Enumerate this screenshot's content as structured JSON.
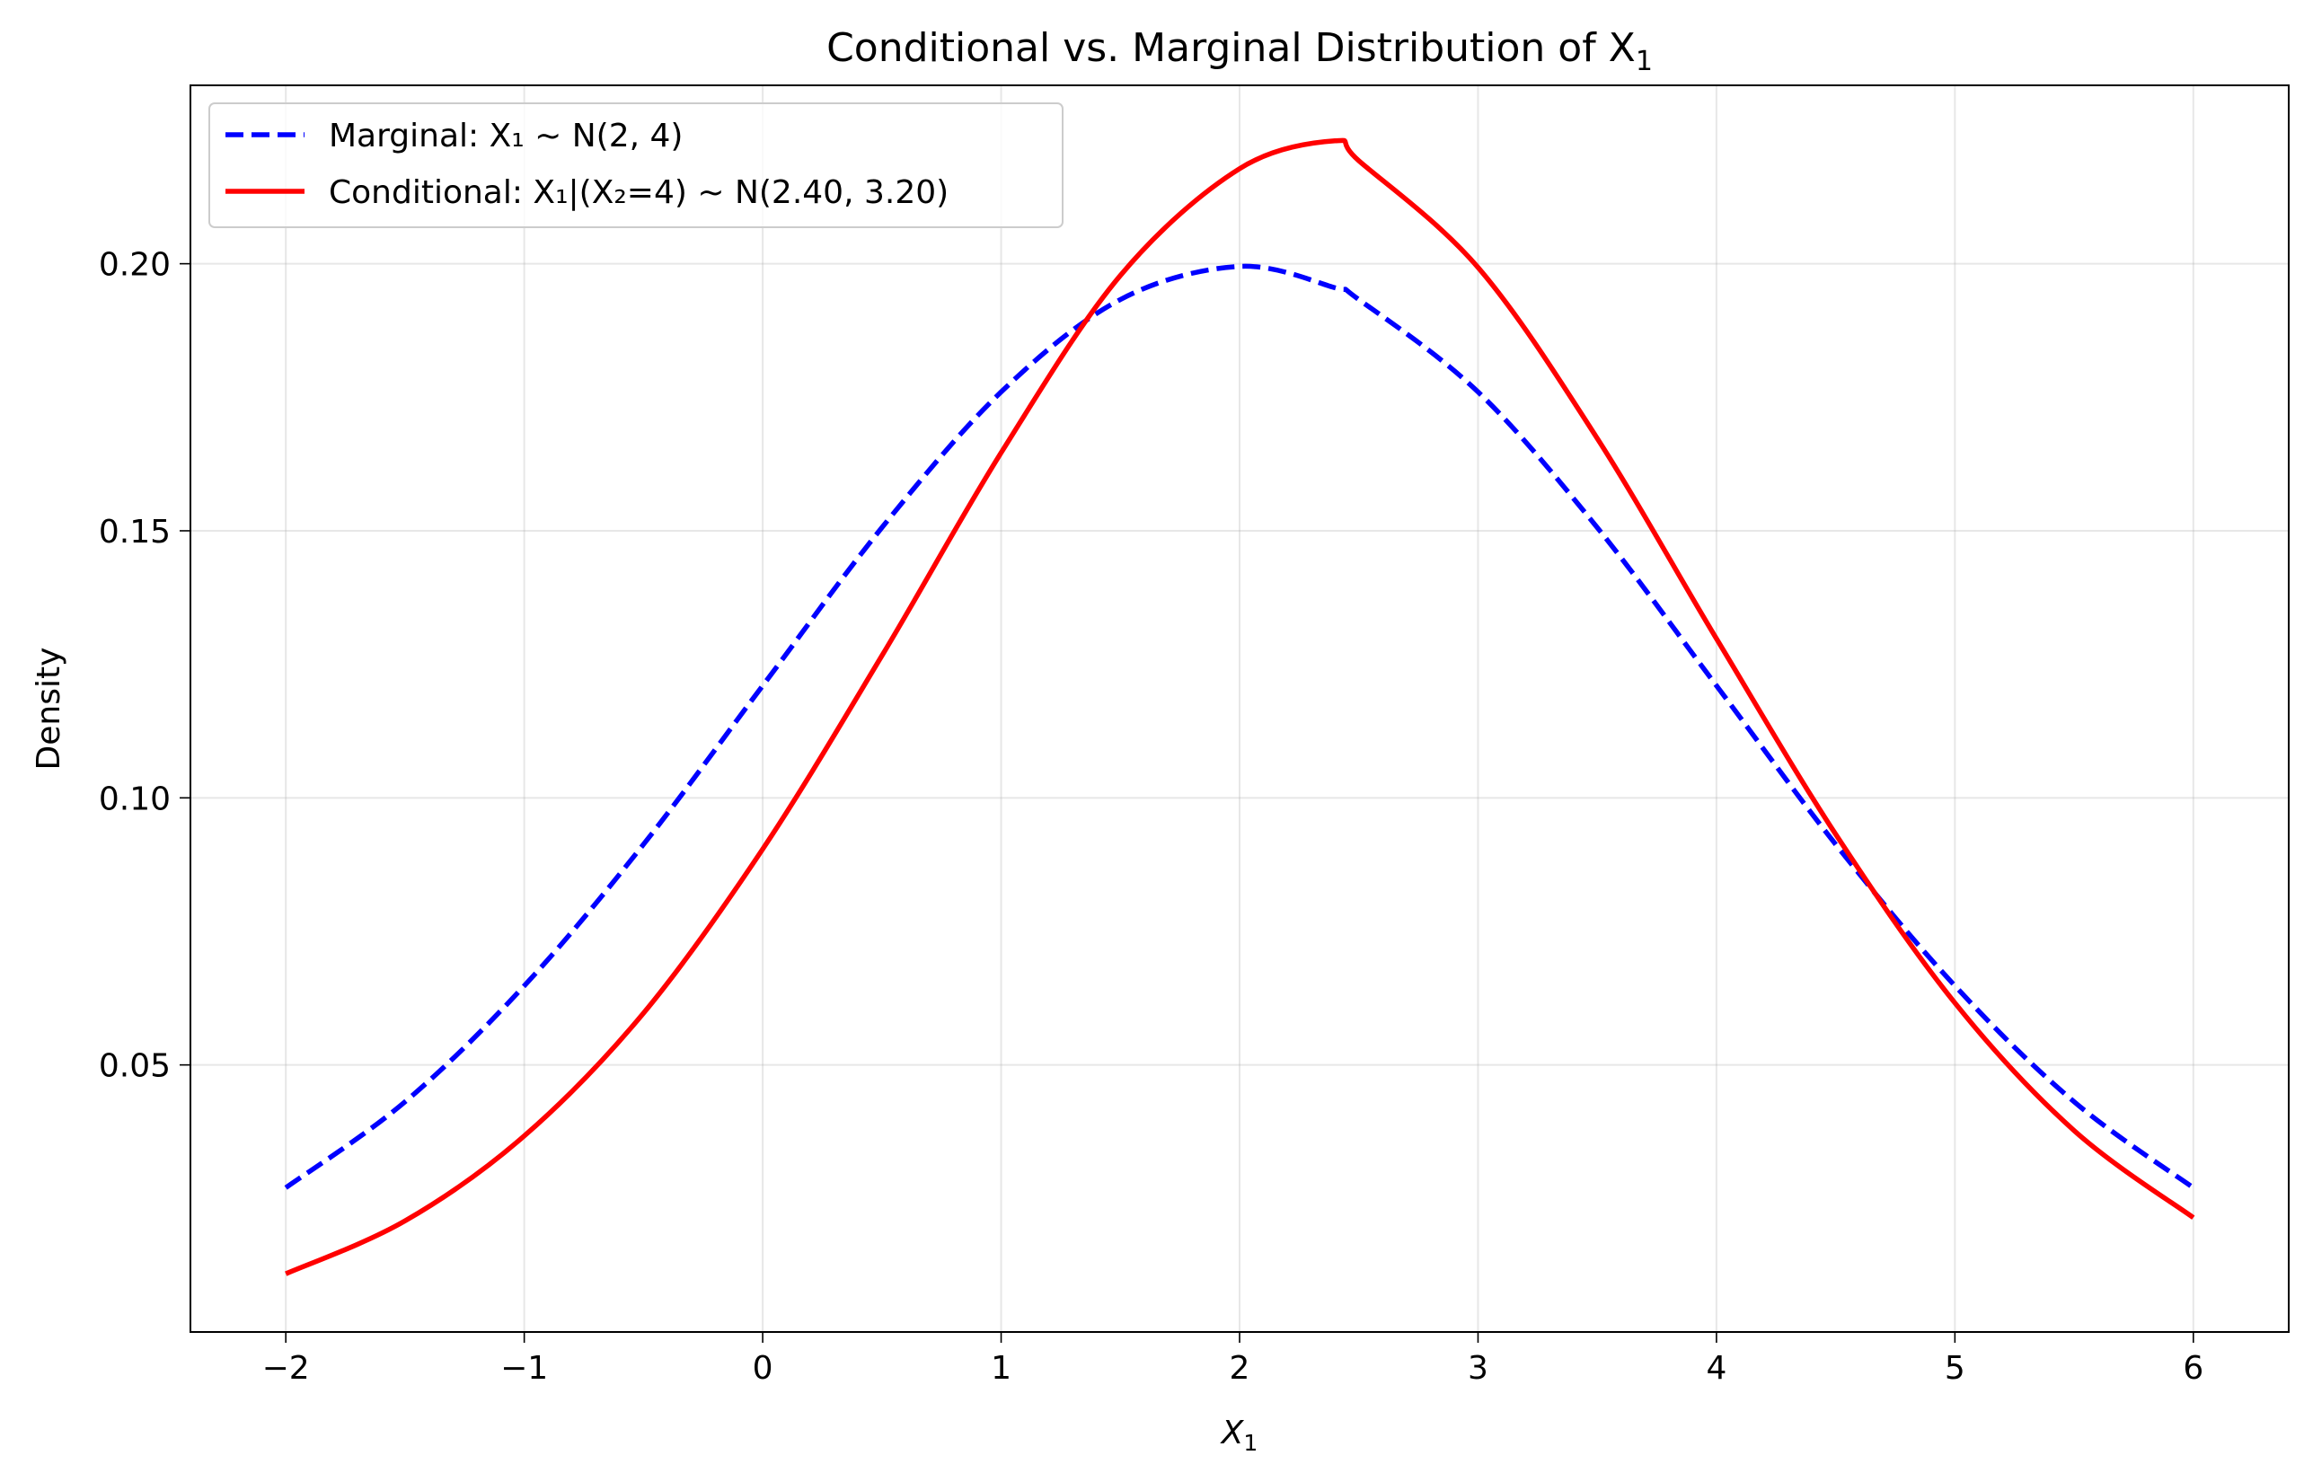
{
  "chart_data": {
    "type": "line",
    "title": "Conditional vs. Marginal Distribution of X",
    "title_sub": "1",
    "xlabel": "X",
    "xlabel_sub": "1",
    "ylabel": "Density",
    "xlim": [
      -2.4,
      6.4
    ],
    "ylim": [
      0.0,
      0.2334
    ],
    "xticks": [
      -2,
      -1,
      0,
      1,
      2,
      3,
      4,
      5,
      6
    ],
    "xtick_labels": [
      "−2",
      "−1",
      "0",
      "1",
      "2",
      "3",
      "4",
      "5",
      "6"
    ],
    "yticks": [
      0.05,
      0.1,
      0.15,
      0.2
    ],
    "ytick_labels": [
      "0.05",
      "0.10",
      "0.15",
      "0.20"
    ],
    "grid": true,
    "legend_position": "upper-left",
    "x": [
      -2.0,
      -1.5,
      -1.0,
      -0.5,
      0.0,
      0.5,
      1.0,
      1.5,
      2.0,
      2.4,
      2.5,
      3.0,
      3.5,
      4.0,
      4.5,
      5.0,
      5.5,
      6.0
    ],
    "series": [
      {
        "name": "Marginal: X₁ ~ N(2, 4)",
        "color": "#0000ff",
        "style": "dashed",
        "values": [
          0.027,
          0.0431,
          0.0648,
          0.0913,
          0.121,
          0.1506,
          0.176,
          0.1933,
          0.1995,
          0.1955,
          0.1933,
          0.176,
          0.1506,
          0.121,
          0.0913,
          0.0648,
          0.0431,
          0.027
        ]
      },
      {
        "name": "Conditional: X₁|(X₂=4) ~ N(2.40, 3.20)",
        "color": "#ff0000",
        "style": "solid",
        "values": [
          0.0109,
          0.0208,
          0.0367,
          0.0597,
          0.0904,
          0.1266,
          0.1646,
          0.1978,
          0.2178,
          0.223,
          0.2193,
          0.1993,
          0.1673,
          0.1298,
          0.0932,
          0.0616,
          0.0377,
          0.0214
        ]
      }
    ]
  }
}
